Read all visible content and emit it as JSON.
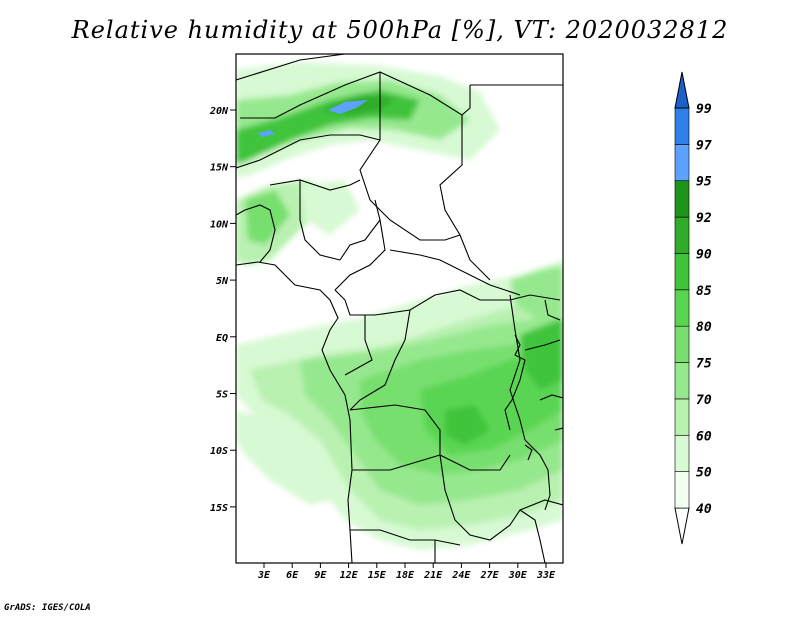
{
  "title": "Relative humidity at 500hPa [%], VT: 2020032812",
  "credit": "GrADS: IGES/COLA",
  "map": {
    "lat_labels": [
      "20N",
      "15N",
      "10N",
      "5N",
      "EQ",
      "5S",
      "10S",
      "15S"
    ],
    "lon_labels": [
      "3E",
      "6E",
      "9E",
      "12E",
      "15E",
      "18E",
      "21E",
      "24E",
      "27E",
      "30E",
      "33E"
    ]
  },
  "colorbar": {
    "levels": [
      "40",
      "50",
      "60",
      "70",
      "75",
      "80",
      "85",
      "90",
      "92",
      "95",
      "97",
      "99"
    ],
    "colors": [
      "#f0fff0",
      "#d7f9d3",
      "#b9f1b1",
      "#96e88e",
      "#77df6e",
      "#5ad552",
      "#40c43a",
      "#2eac2a",
      "#1e941d",
      "#5ea2ff",
      "#2f7fe8",
      "#1d5fc8"
    ]
  }
}
